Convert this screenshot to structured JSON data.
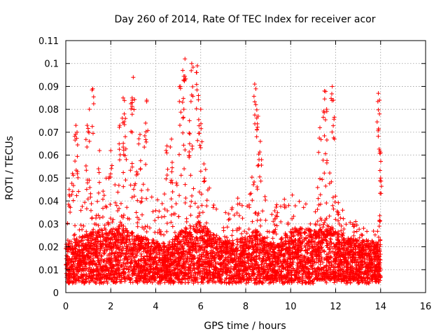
{
  "chart_data": {
    "type": "scatter",
    "title": "Day 260 of 2014, Rate Of TEC Index for receiver acor",
    "xlabel": "GPS time / hours",
    "ylabel": "ROTI / TECUs",
    "xlim": [
      0,
      16
    ],
    "ylim": [
      0,
      0.11
    ],
    "xticks": [
      0,
      2,
      4,
      6,
      8,
      10,
      12,
      14,
      16
    ],
    "xtick_labels": [
      "0",
      "2",
      "4",
      "6",
      "8",
      "10",
      "12",
      "14",
      "16"
    ],
    "yticks": [
      0,
      0.01,
      0.02,
      0.03,
      0.04,
      0.05,
      0.06,
      0.07,
      0.08,
      0.09,
      0.1,
      0.11
    ],
    "ytick_labels": [
      "0",
      "0.01",
      "0.02",
      "0.03",
      "0.04",
      "0.05",
      "0.06",
      "0.07",
      "0.08",
      "0.09",
      "0.1",
      "0.11"
    ],
    "grid": true,
    "marker": "+",
    "color": "#ff0000",
    "data_range_x": [
      0,
      14
    ],
    "series": [
      {
        "name": "ROTI",
        "density_profile": {
          "x": [
            0,
            0.5,
            1,
            1.5,
            2,
            2.5,
            3,
            3.5,
            4,
            4.5,
            5,
            5.5,
            6,
            6.5,
            7,
            7.5,
            8,
            8.5,
            9,
            9.5,
            10,
            10.5,
            11,
            11.5,
            12,
            12.5,
            13,
            13.5,
            14
          ],
          "typical_center": [
            0.012,
            0.014,
            0.015,
            0.016,
            0.016,
            0.017,
            0.015,
            0.014,
            0.013,
            0.012,
            0.015,
            0.017,
            0.018,
            0.015,
            0.013,
            0.013,
            0.014,
            0.016,
            0.012,
            0.013,
            0.016,
            0.017,
            0.016,
            0.018,
            0.016,
            0.014,
            0.013,
            0.013,
            0.013
          ],
          "upper_envelope": [
            0.03,
            0.045,
            0.05,
            0.045,
            0.055,
            0.065,
            0.06,
            0.05,
            0.04,
            0.045,
            0.06,
            0.07,
            0.065,
            0.04,
            0.035,
            0.04,
            0.045,
            0.06,
            0.035,
            0.04,
            0.045,
            0.04,
            0.045,
            0.065,
            0.045,
            0.035,
            0.03,
            0.03,
            0.03
          ]
        },
        "peaks": [
          {
            "x": 0.15,
            "y": 0.045
          },
          {
            "x": 0.3,
            "y": 0.052
          },
          {
            "x": 0.45,
            "y": 0.073
          },
          {
            "x": 0.5,
            "y": 0.07
          },
          {
            "x": 0.95,
            "y": 0.073
          },
          {
            "x": 1.05,
            "y": 0.08
          },
          {
            "x": 1.2,
            "y": 0.089
          },
          {
            "x": 1.5,
            "y": 0.062
          },
          {
            "x": 2.0,
            "y": 0.062
          },
          {
            "x": 2.4,
            "y": 0.073
          },
          {
            "x": 2.55,
            "y": 0.085
          },
          {
            "x": 2.6,
            "y": 0.078
          },
          {
            "x": 2.95,
            "y": 0.085
          },
          {
            "x": 3.0,
            "y": 0.094
          },
          {
            "x": 3.3,
            "y": 0.069
          },
          {
            "x": 3.6,
            "y": 0.084
          },
          {
            "x": 3.55,
            "y": 0.074
          },
          {
            "x": 4.5,
            "y": 0.064
          },
          {
            "x": 4.7,
            "y": 0.067
          },
          {
            "x": 5.1,
            "y": 0.09
          },
          {
            "x": 5.2,
            "y": 0.097
          },
          {
            "x": 5.3,
            "y": 0.102
          },
          {
            "x": 5.25,
            "y": 0.08
          },
          {
            "x": 5.5,
            "y": 0.075
          },
          {
            "x": 5.6,
            "y": 0.1
          },
          {
            "x": 5.85,
            "y": 0.099
          },
          {
            "x": 5.9,
            "y": 0.086
          },
          {
            "x": 6.0,
            "y": 0.08
          },
          {
            "x": 8.4,
            "y": 0.091
          },
          {
            "x": 8.45,
            "y": 0.082
          },
          {
            "x": 8.55,
            "y": 0.077
          },
          {
            "x": 8.65,
            "y": 0.066
          },
          {
            "x": 11.3,
            "y": 0.072
          },
          {
            "x": 11.5,
            "y": 0.088
          },
          {
            "x": 11.6,
            "y": 0.08
          },
          {
            "x": 11.85,
            "y": 0.09
          },
          {
            "x": 11.9,
            "y": 0.084
          },
          {
            "x": 13.9,
            "y": 0.087
          },
          {
            "x": 13.95,
            "y": 0.078
          },
          {
            "x": 14.0,
            "y": 0.061
          },
          {
            "x": 14.0,
            "y": 0.05
          }
        ]
      }
    ]
  }
}
